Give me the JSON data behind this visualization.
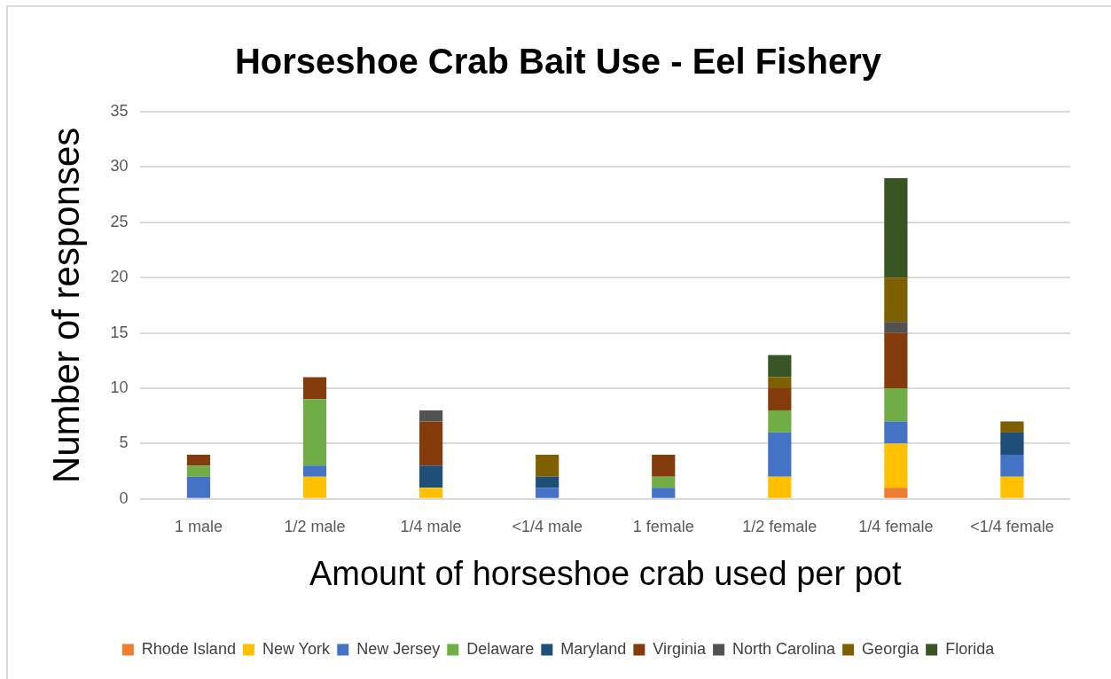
{
  "chart_data": {
    "type": "bar",
    "title": "Horseshoe Crab Bait Use - Eel Fishery",
    "xlabel": "Amount of horseshoe crab used per pot",
    "ylabel": "Number of responses",
    "categories": [
      "1 male",
      "1/2 male",
      "1/4 male",
      "<1/4 male",
      "1 female",
      "1/2 female",
      "1/4 female",
      "<1/4 female"
    ],
    "stacked": true,
    "series": [
      {
        "name": "Rhode Island",
        "color": "#ed7d31",
        "values": [
          0,
          0,
          0,
          0,
          0,
          0,
          1,
          0
        ]
      },
      {
        "name": "New York",
        "color": "#ffc000",
        "values": [
          0,
          2,
          1,
          0,
          0,
          2,
          4,
          2
        ]
      },
      {
        "name": "New Jersey",
        "color": "#4472c4",
        "values": [
          2,
          1,
          0,
          1,
          1,
          4,
          2,
          2
        ]
      },
      {
        "name": "Delaware",
        "color": "#70ad47",
        "values": [
          1,
          6,
          0,
          0,
          1,
          2,
          3,
          0
        ]
      },
      {
        "name": "Maryland",
        "color": "#1f4e79",
        "values": [
          0,
          0,
          2,
          1,
          0,
          0,
          0,
          2
        ]
      },
      {
        "name": "Virginia",
        "color": "#843c0c",
        "values": [
          1,
          2,
          4,
          0,
          2,
          2,
          5,
          0
        ]
      },
      {
        "name": "North Carolina",
        "color": "#525252",
        "values": [
          0,
          0,
          1,
          0,
          0,
          0,
          1,
          0
        ]
      },
      {
        "name": "Georgia",
        "color": "#7f6000",
        "values": [
          0,
          0,
          0,
          2,
          0,
          1,
          4,
          1
        ]
      },
      {
        "name": "Florida",
        "color": "#375623",
        "values": [
          0,
          0,
          0,
          0,
          0,
          2,
          9,
          0
        ]
      }
    ],
    "ylim": [
      0,
      35
    ],
    "yticks": [
      0,
      5,
      10,
      15,
      20,
      25,
      30,
      35
    ],
    "grid": "y",
    "legend": "bottom"
  }
}
